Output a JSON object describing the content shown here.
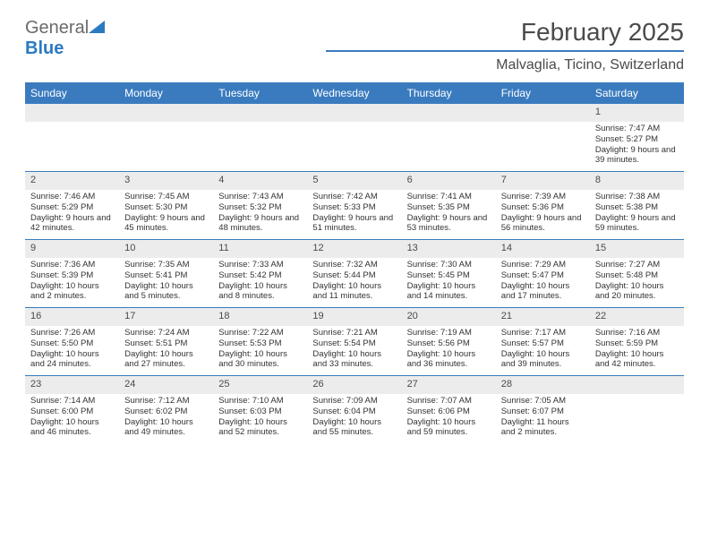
{
  "logo": {
    "text_general": "General",
    "text_blue": "Blue",
    "triangle_color": "#2a7ac0"
  },
  "title": "February 2025",
  "location": "Malvaglia, Ticino, Switzerland",
  "colors": {
    "header_bg": "#3a7bbf",
    "header_text": "#ffffff",
    "daynum_bg": "#ececec",
    "rule": "#3a7bbf",
    "body_text": "#333333"
  },
  "day_headers": [
    "Sunday",
    "Monday",
    "Tuesday",
    "Wednesday",
    "Thursday",
    "Friday",
    "Saturday"
  ],
  "weeks": [
    [
      {
        "empty": true
      },
      {
        "empty": true
      },
      {
        "empty": true
      },
      {
        "empty": true
      },
      {
        "empty": true
      },
      {
        "empty": true
      },
      {
        "num": "1",
        "sunrise": "Sunrise: 7:47 AM",
        "sunset": "Sunset: 5:27 PM",
        "daylight": "Daylight: 9 hours and 39 minutes."
      }
    ],
    [
      {
        "num": "2",
        "sunrise": "Sunrise: 7:46 AM",
        "sunset": "Sunset: 5:29 PM",
        "daylight": "Daylight: 9 hours and 42 minutes."
      },
      {
        "num": "3",
        "sunrise": "Sunrise: 7:45 AM",
        "sunset": "Sunset: 5:30 PM",
        "daylight": "Daylight: 9 hours and 45 minutes."
      },
      {
        "num": "4",
        "sunrise": "Sunrise: 7:43 AM",
        "sunset": "Sunset: 5:32 PM",
        "daylight": "Daylight: 9 hours and 48 minutes."
      },
      {
        "num": "5",
        "sunrise": "Sunrise: 7:42 AM",
        "sunset": "Sunset: 5:33 PM",
        "daylight": "Daylight: 9 hours and 51 minutes."
      },
      {
        "num": "6",
        "sunrise": "Sunrise: 7:41 AM",
        "sunset": "Sunset: 5:35 PM",
        "daylight": "Daylight: 9 hours and 53 minutes."
      },
      {
        "num": "7",
        "sunrise": "Sunrise: 7:39 AM",
        "sunset": "Sunset: 5:36 PM",
        "daylight": "Daylight: 9 hours and 56 minutes."
      },
      {
        "num": "8",
        "sunrise": "Sunrise: 7:38 AM",
        "sunset": "Sunset: 5:38 PM",
        "daylight": "Daylight: 9 hours and 59 minutes."
      }
    ],
    [
      {
        "num": "9",
        "sunrise": "Sunrise: 7:36 AM",
        "sunset": "Sunset: 5:39 PM",
        "daylight": "Daylight: 10 hours and 2 minutes."
      },
      {
        "num": "10",
        "sunrise": "Sunrise: 7:35 AM",
        "sunset": "Sunset: 5:41 PM",
        "daylight": "Daylight: 10 hours and 5 minutes."
      },
      {
        "num": "11",
        "sunrise": "Sunrise: 7:33 AM",
        "sunset": "Sunset: 5:42 PM",
        "daylight": "Daylight: 10 hours and 8 minutes."
      },
      {
        "num": "12",
        "sunrise": "Sunrise: 7:32 AM",
        "sunset": "Sunset: 5:44 PM",
        "daylight": "Daylight: 10 hours and 11 minutes."
      },
      {
        "num": "13",
        "sunrise": "Sunrise: 7:30 AM",
        "sunset": "Sunset: 5:45 PM",
        "daylight": "Daylight: 10 hours and 14 minutes."
      },
      {
        "num": "14",
        "sunrise": "Sunrise: 7:29 AM",
        "sunset": "Sunset: 5:47 PM",
        "daylight": "Daylight: 10 hours and 17 minutes."
      },
      {
        "num": "15",
        "sunrise": "Sunrise: 7:27 AM",
        "sunset": "Sunset: 5:48 PM",
        "daylight": "Daylight: 10 hours and 20 minutes."
      }
    ],
    [
      {
        "num": "16",
        "sunrise": "Sunrise: 7:26 AM",
        "sunset": "Sunset: 5:50 PM",
        "daylight": "Daylight: 10 hours and 24 minutes."
      },
      {
        "num": "17",
        "sunrise": "Sunrise: 7:24 AM",
        "sunset": "Sunset: 5:51 PM",
        "daylight": "Daylight: 10 hours and 27 minutes."
      },
      {
        "num": "18",
        "sunrise": "Sunrise: 7:22 AM",
        "sunset": "Sunset: 5:53 PM",
        "daylight": "Daylight: 10 hours and 30 minutes."
      },
      {
        "num": "19",
        "sunrise": "Sunrise: 7:21 AM",
        "sunset": "Sunset: 5:54 PM",
        "daylight": "Daylight: 10 hours and 33 minutes."
      },
      {
        "num": "20",
        "sunrise": "Sunrise: 7:19 AM",
        "sunset": "Sunset: 5:56 PM",
        "daylight": "Daylight: 10 hours and 36 minutes."
      },
      {
        "num": "21",
        "sunrise": "Sunrise: 7:17 AM",
        "sunset": "Sunset: 5:57 PM",
        "daylight": "Daylight: 10 hours and 39 minutes."
      },
      {
        "num": "22",
        "sunrise": "Sunrise: 7:16 AM",
        "sunset": "Sunset: 5:59 PM",
        "daylight": "Daylight: 10 hours and 42 minutes."
      }
    ],
    [
      {
        "num": "23",
        "sunrise": "Sunrise: 7:14 AM",
        "sunset": "Sunset: 6:00 PM",
        "daylight": "Daylight: 10 hours and 46 minutes."
      },
      {
        "num": "24",
        "sunrise": "Sunrise: 7:12 AM",
        "sunset": "Sunset: 6:02 PM",
        "daylight": "Daylight: 10 hours and 49 minutes."
      },
      {
        "num": "25",
        "sunrise": "Sunrise: 7:10 AM",
        "sunset": "Sunset: 6:03 PM",
        "daylight": "Daylight: 10 hours and 52 minutes."
      },
      {
        "num": "26",
        "sunrise": "Sunrise: 7:09 AM",
        "sunset": "Sunset: 6:04 PM",
        "daylight": "Daylight: 10 hours and 55 minutes."
      },
      {
        "num": "27",
        "sunrise": "Sunrise: 7:07 AM",
        "sunset": "Sunset: 6:06 PM",
        "daylight": "Daylight: 10 hours and 59 minutes."
      },
      {
        "num": "28",
        "sunrise": "Sunrise: 7:05 AM",
        "sunset": "Sunset: 6:07 PM",
        "daylight": "Daylight: 11 hours and 2 minutes."
      },
      {
        "empty": true
      }
    ]
  ]
}
